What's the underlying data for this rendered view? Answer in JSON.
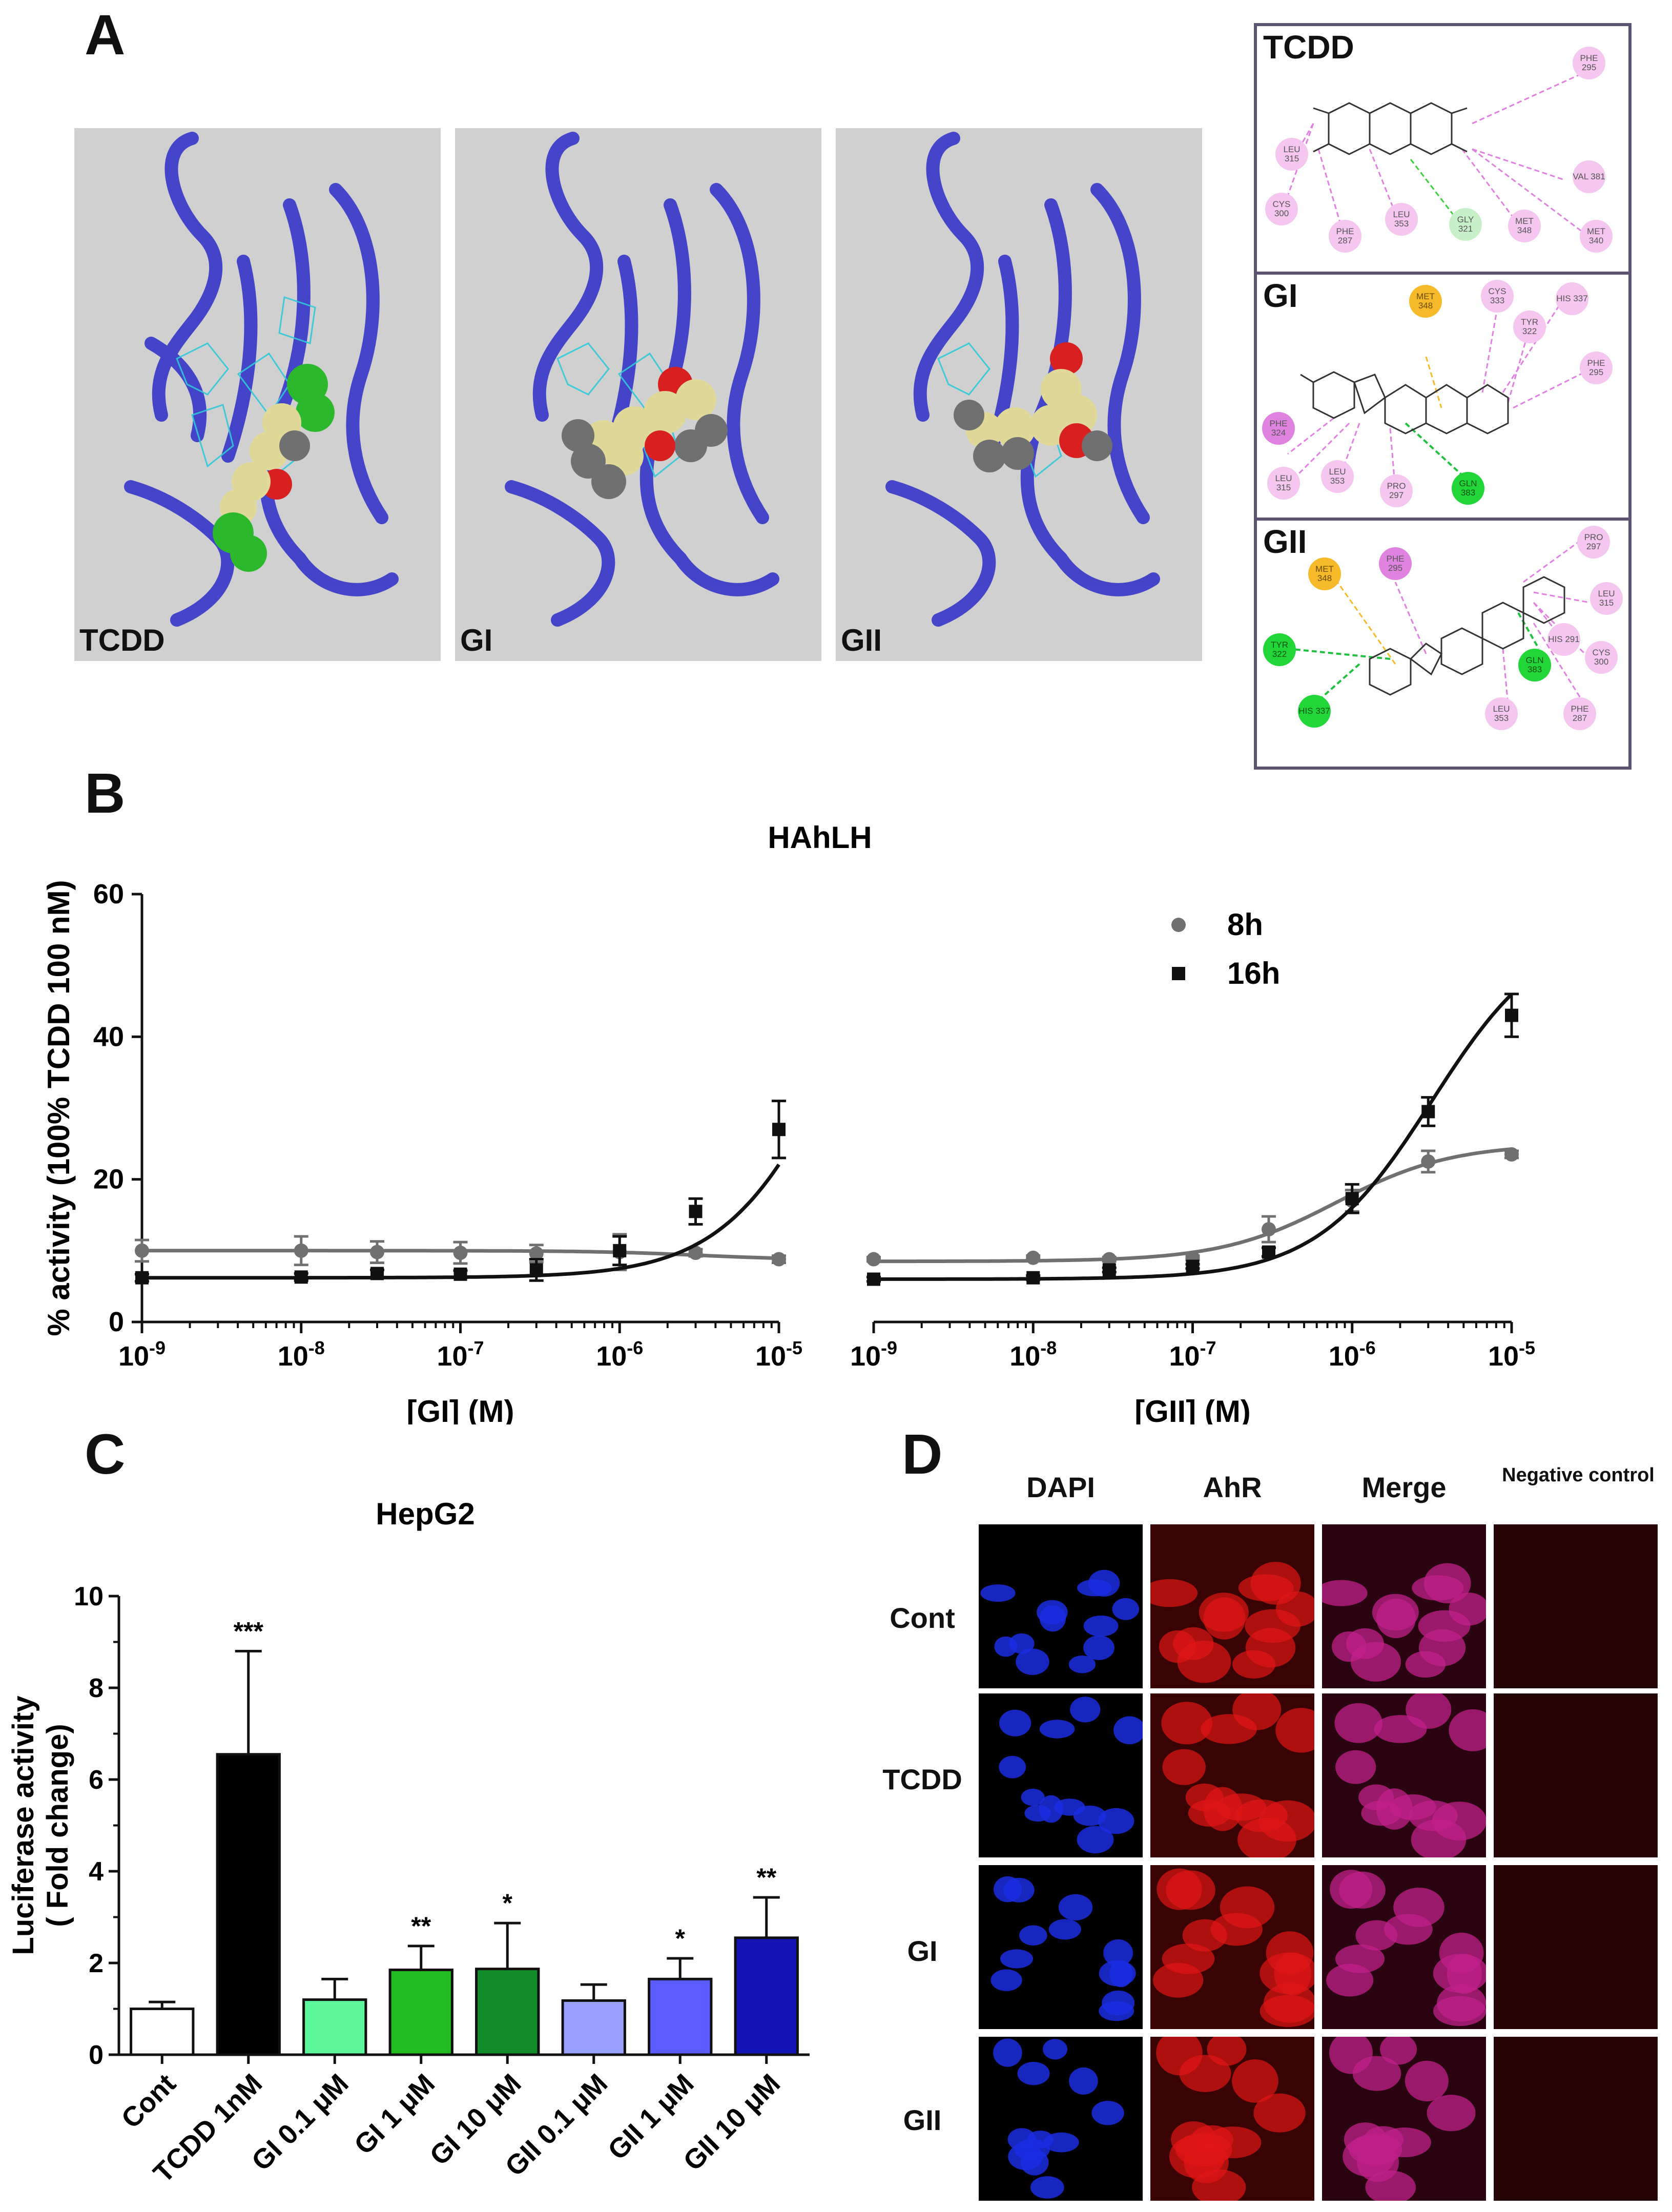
{
  "panel_labels": {
    "a": "A",
    "b": "B",
    "c": "C",
    "d": "D"
  },
  "panel_a": {
    "structures": [
      {
        "label": "TCDD"
      },
      {
        "label": "GI"
      },
      {
        "label": "GII"
      }
    ],
    "interaction_maps": [
      {
        "title": "TCDD",
        "residues": [
          {
            "name": "PHE 295",
            "kind": "alkyl"
          },
          {
            "name": "LEU 315",
            "kind": "alkyl"
          },
          {
            "name": "VAL 381",
            "kind": "alkyl"
          },
          {
            "name": "CYS 300",
            "kind": "alkyl"
          },
          {
            "name": "LEU 353",
            "kind": "alkyl"
          },
          {
            "name": "GLY 321",
            "kind": "vdw"
          },
          {
            "name": "MET 348",
            "kind": "alkyl"
          },
          {
            "name": "PHE 287",
            "kind": "alkyl"
          },
          {
            "name": "MET 340",
            "kind": "alkyl"
          }
        ]
      },
      {
        "title": "GI",
        "residues": [
          {
            "name": "MET 348",
            "kind": "pi-sulfur"
          },
          {
            "name": "CYS 333",
            "kind": "alkyl"
          },
          {
            "name": "HIS 337",
            "kind": "alkyl"
          },
          {
            "name": "TYR 322",
            "kind": "alkyl"
          },
          {
            "name": "PHE 295",
            "kind": "alkyl"
          },
          {
            "name": "PHE 324",
            "kind": "pi-pi"
          },
          {
            "name": "LEU 315",
            "kind": "alkyl"
          },
          {
            "name": "LEU 353",
            "kind": "alkyl"
          },
          {
            "name": "PRO 297",
            "kind": "alkyl"
          },
          {
            "name": "GLN 383",
            "kind": "h-bond"
          }
        ]
      },
      {
        "title": "GII",
        "residues": [
          {
            "name": "PRO 297",
            "kind": "alkyl"
          },
          {
            "name": "PHE 295",
            "kind": "pi-pi"
          },
          {
            "name": "MET 348",
            "kind": "pi-sulfur"
          },
          {
            "name": "LEU 315",
            "kind": "alkyl"
          },
          {
            "name": "HIS 291",
            "kind": "alkyl"
          },
          {
            "name": "CYS 300",
            "kind": "alkyl"
          },
          {
            "name": "TYR 322",
            "kind": "h-bond"
          },
          {
            "name": "GLN 383",
            "kind": "h-bond"
          },
          {
            "name": "HIS 337",
            "kind": "h-bond"
          },
          {
            "name": "LEU 353",
            "kind": "alkyl"
          },
          {
            "name": "PHE 287",
            "kind": "alkyl"
          }
        ]
      }
    ]
  },
  "panel_d": {
    "columns": [
      "DAPI",
      "AhR",
      "Merge",
      "Negative control"
    ],
    "rows": [
      "Cont",
      "TCDD",
      "GI",
      "GII"
    ],
    "colors": {
      "dapi": "#1a2de0",
      "ahr": "#e01515",
      "merge": "#c0208a",
      "neg": "#240404"
    }
  },
  "chart_data": [
    {
      "id": "B-left",
      "type": "line",
      "title": "HAhLH",
      "xlabel": "[GI] (M)",
      "ylabel": "% activity (100% TCDD 100 nM)",
      "xscale": "log",
      "xlim": [
        1e-09,
        1e-05
      ],
      "ylim": [
        0,
        60
      ],
      "xticks": [
        "10-9",
        "10-8",
        "10-7",
        "10-6",
        "10-5"
      ],
      "yticks": [
        0,
        20,
        40,
        60
      ],
      "legend": {
        "position": "top-right"
      },
      "series": [
        {
          "name": "8h",
          "marker": "circle",
          "color": "#707070",
          "x": [
            1e-09,
            1e-08,
            3e-08,
            1e-07,
            3e-07,
            1e-06,
            3e-06,
            1e-05
          ],
          "y": [
            10,
            10,
            9.8,
            9.7,
            9.6,
            9.8,
            9.7,
            8.8
          ],
          "err": [
            1.5,
            2,
            1.5,
            1.5,
            1.2,
            2.5,
            0.5,
            0.5
          ],
          "fit": {
            "bottom": 10,
            "top": 8.7,
            "logec50": -5.5,
            "hill": 1.3
          }
        },
        {
          "name": "16h",
          "marker": "square",
          "color": "#111111",
          "x": [
            1e-09,
            1e-08,
            3e-08,
            1e-07,
            3e-07,
            1e-06,
            3e-06,
            1e-05
          ],
          "y": [
            6.2,
            6.3,
            6.8,
            6.7,
            7.3,
            10,
            15.5,
            27
          ],
          "err": [
            0.5,
            0.5,
            0.5,
            0.5,
            1.5,
            2,
            1.8,
            4
          ],
          "fit": {
            "bottom": 6.2,
            "top": 70,
            "logec50": -4.6,
            "hill": 1.2
          }
        }
      ]
    },
    {
      "id": "B-right",
      "type": "line",
      "title": "",
      "xlabel": "[GII] (M)",
      "xscale": "log",
      "xlim": [
        1e-09,
        1e-05
      ],
      "ylim": [
        0,
        60
      ],
      "xticks": [
        "10-9",
        "10-8",
        "10-7",
        "10-6",
        "10-5"
      ],
      "series": [
        {
          "name": "8h",
          "marker": "circle",
          "color": "#707070",
          "x": [
            1e-09,
            1e-08,
            3e-08,
            1e-07,
            3e-07,
            1e-06,
            3e-06,
            1e-05
          ],
          "y": [
            8.8,
            9,
            8.8,
            9,
            13,
            17,
            22.5,
            23.5
          ],
          "err": [
            0.3,
            0.3,
            0.3,
            0.3,
            1.8,
            1.5,
            1.5,
            0.5
          ],
          "fit": {
            "bottom": 8.5,
            "top": 25,
            "logec50": -6.1,
            "hill": 1.2
          }
        },
        {
          "name": "16h",
          "marker": "square",
          "color": "#111111",
          "x": [
            1e-09,
            1e-08,
            3e-08,
            1e-07,
            3e-07,
            1e-06,
            3e-06,
            1e-05
          ],
          "y": [
            6,
            6.2,
            7.3,
            7.8,
            9.8,
            17.3,
            29.5,
            43
          ],
          "err": [
            0.3,
            0.3,
            0.3,
            0.3,
            0.6,
            2.0,
            2.0,
            3.0
          ],
          "fit": {
            "bottom": 6,
            "top": 56,
            "logec50": -5.5,
            "hill": 1.2
          }
        }
      ]
    },
    {
      "id": "C",
      "type": "bar",
      "title": "HepG2",
      "ylabel_line1": "Luciferase activity",
      "ylabel_line2": "( Fold change)",
      "ylim": [
        0,
        10
      ],
      "yticks": [
        0,
        2,
        4,
        6,
        8,
        10
      ],
      "categories": [
        "Cont",
        "TCDD 1nM",
        "GI 0.1 μM",
        "GI 1 μM",
        "GI 10 μM",
        "GII 0.1 μM",
        "GII 1 μM",
        "GII 10 μM"
      ],
      "values": [
        1.0,
        6.55,
        1.2,
        1.85,
        1.87,
        1.18,
        1.65,
        2.55
      ],
      "errors": [
        0.15,
        2.25,
        0.45,
        0.52,
        1.0,
        0.35,
        0.45,
        0.88
      ],
      "significance": [
        "",
        "***",
        "",
        "**",
        "*",
        "",
        "*",
        "**"
      ],
      "colors": [
        "#ffffff",
        "#000000",
        "#5cf79a",
        "#22bc22",
        "#138c2a",
        "#9aa0ff",
        "#5a5cff",
        "#1414b4"
      ]
    }
  ]
}
